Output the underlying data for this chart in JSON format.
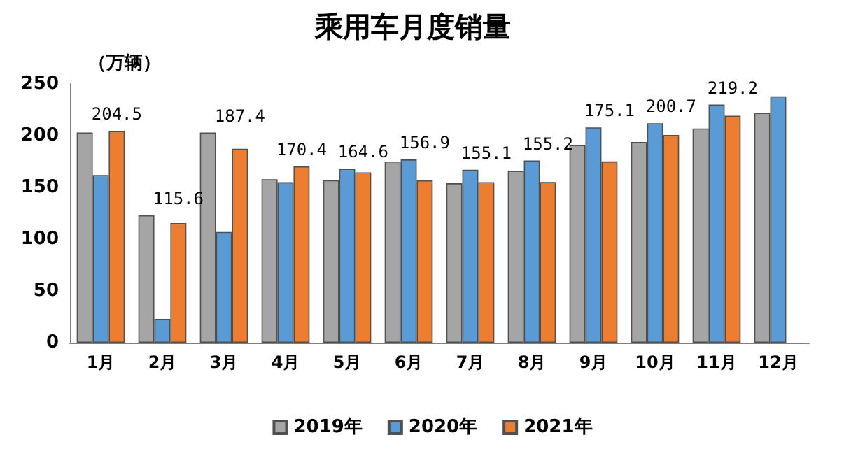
{
  "chart_data": {
    "type": "bar",
    "title": "乘用车月度销量",
    "ylabel": "（万辆）",
    "categories": [
      "1月",
      "2月",
      "3月",
      "4月",
      "5月",
      "6月",
      "7月",
      "8月",
      "9月",
      "10月",
      "11月",
      "12月"
    ],
    "series": [
      {
        "name": "2019年",
        "color": "#a5a5a5",
        "values": [
          203,
          123,
          203,
          158,
          157,
          175,
          154,
          166,
          191,
          194,
          207,
          222
        ]
      },
      {
        "name": "2020年",
        "color": "#5b9bd5",
        "values": [
          162,
          23,
          107,
          155,
          168,
          177,
          167,
          176,
          208,
          212,
          230,
          238
        ]
      },
      {
        "name": "2021年",
        "color": "#ed7d31",
        "values": [
          204.5,
          115.6,
          187.4,
          170.4,
          164.6,
          156.9,
          155.1,
          155.2,
          175.1,
          200.7,
          219.2,
          null
        ],
        "value_labels": [
          "204.5",
          "115.6",
          "187.4",
          "170.4",
          "164.6",
          "156.9",
          "155.1",
          "155.2",
          "175.1",
          "200.7",
          "219.2",
          null
        ]
      }
    ],
    "ylim": [
      0,
      250
    ],
    "yticks": [
      0,
      50,
      100,
      150,
      200,
      250
    ],
    "grid": false,
    "legend": "bottom"
  }
}
